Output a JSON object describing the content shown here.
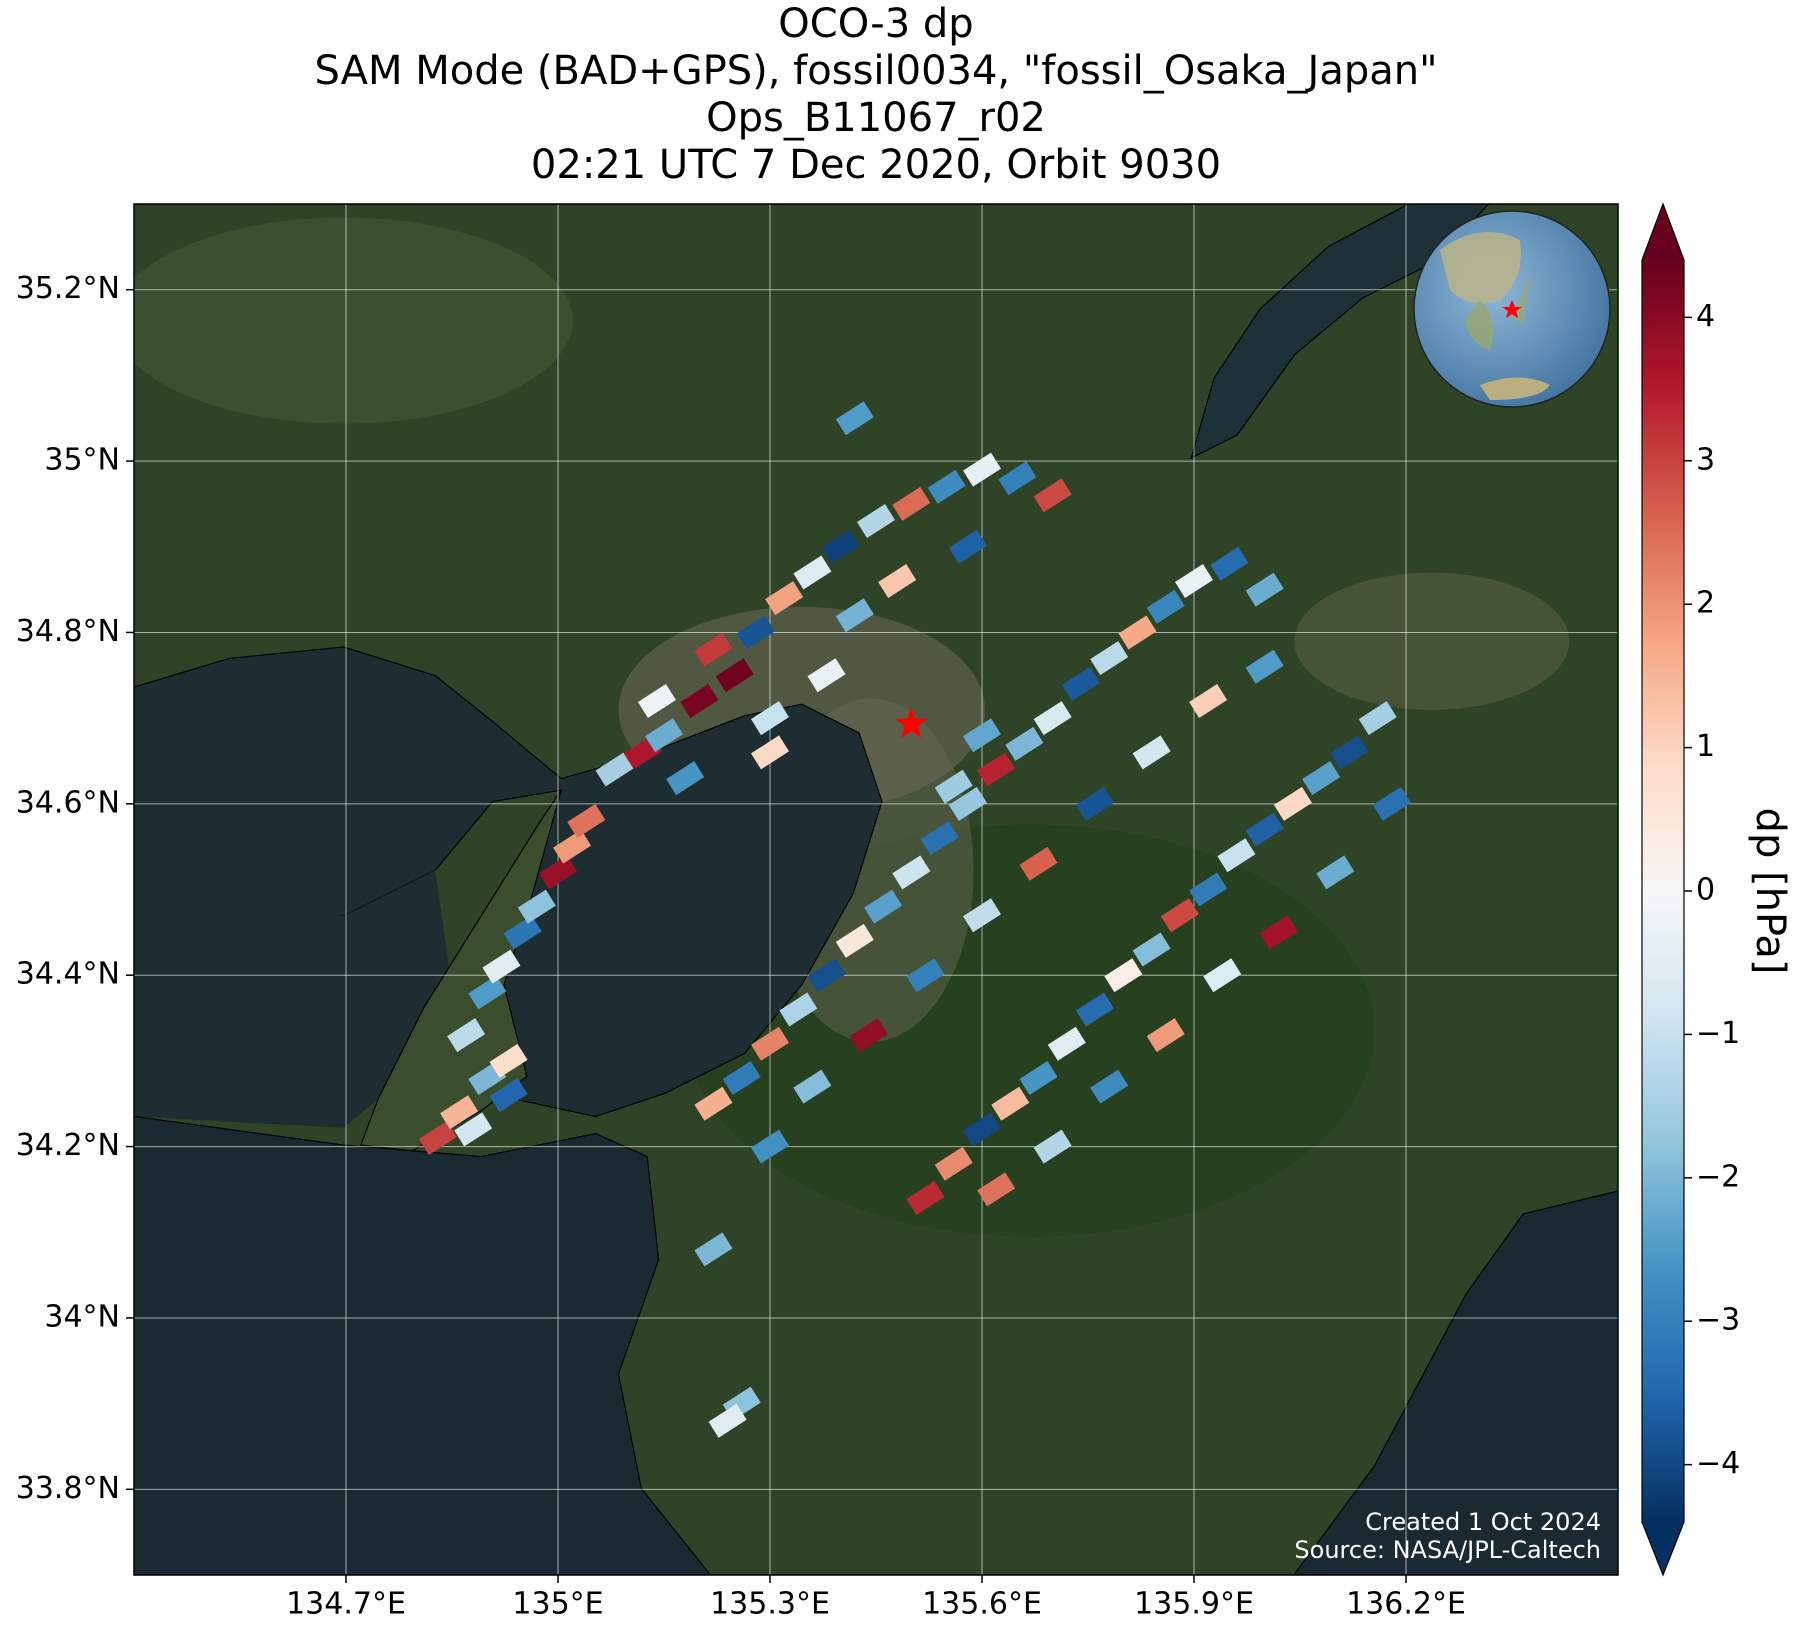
{
  "chart_data": {
    "type": "map",
    "title": [
      "OCO-3 dp",
      "SAM Mode (BAD+GPS), fossil0034, \"fossil_Osaka_Japan\"",
      "Ops_B11067_r02",
      "02:21 UTC 7 Dec 2020, Orbit 9030"
    ],
    "colorbar_label": "dp [hPa]",
    "annotations": [
      "Created 1 Oct 2024",
      "Source: NASA/JPL-Caltech"
    ],
    "xlim": [
      134.4,
      136.5
    ],
    "ylim": [
      33.7,
      35.3
    ],
    "xticks": [
      {
        "value": 134.7,
        "label": "134.7°E"
      },
      {
        "value": 135,
        "label": "135°E"
      },
      {
        "value": 135.3,
        "label": "135.3°E"
      },
      {
        "value": 135.6,
        "label": "135.6°E"
      },
      {
        "value": 135.9,
        "label": "135.9°E"
      },
      {
        "value": 136.2,
        "label": "136.2°E"
      }
    ],
    "yticks": [
      {
        "value": 33.8,
        "label": "33.8°N"
      },
      {
        "value": 34,
        "label": "34°N"
      },
      {
        "value": 34.2,
        "label": "34.2°N"
      },
      {
        "value": 34.4,
        "label": "34.4°N"
      },
      {
        "value": 34.6,
        "label": "34.6°N"
      },
      {
        "value": 34.8,
        "label": "34.8°N"
      },
      {
        "value": 35,
        "label": "35°N"
      },
      {
        "value": 35.2,
        "label": "35.2°N"
      }
    ],
    "grid": true,
    "clim": [
      -4.4,
      4.4
    ],
    "cticks": [
      {
        "value": -4,
        "label": "−4"
      },
      {
        "value": -3,
        "label": "−3"
      },
      {
        "value": -2,
        "label": "−2"
      },
      {
        "value": -1,
        "label": "−1"
      },
      0,
      1,
      2,
      3,
      4
    ],
    "colormap": [
      "#053061",
      "#2166ac",
      "#4393c3",
      "#92c5de",
      "#d1e5f0",
      "#f7f7f7",
      "#fddbc7",
      "#f4a582",
      "#d6604d",
      "#b2182b",
      "#67001f"
    ],
    "target": {
      "x": 135.5,
      "y": 34.693,
      "color": "#ff0000"
    },
    "x": [
      134.83,
      134.86,
      134.9,
      134.93,
      134.87,
      134.9,
      134.92,
      134.95,
      134.97,
      135.0,
      135.02,
      135.04,
      134.88,
      134.93,
      135.08,
      135.12,
      135.15,
      135.2,
      135.25,
      135.22,
      135.28,
      135.32,
      135.36,
      135.4,
      135.45,
      135.5,
      135.55,
      135.6,
      135.65,
      135.7,
      135.18,
      135.3,
      135.38,
      135.42,
      135.48,
      135.58,
      135.3,
      135.14,
      135.22,
      135.26,
      135.3,
      135.34,
      135.38,
      135.42,
      135.46,
      135.5,
      135.54,
      135.58,
      135.62,
      135.66,
      135.7,
      135.74,
      135.78,
      135.82,
      135.86,
      135.9,
      135.95,
      136.0,
      135.3,
      135.36,
      135.44,
      135.52,
      135.6,
      135.68,
      135.76,
      135.84,
      135.92,
      136.0,
      135.56,
      135.6,
      135.52,
      135.56,
      135.6,
      135.64,
      135.68,
      135.72,
      135.76,
      135.8,
      135.84,
      135.88,
      135.92,
      135.96,
      136.0,
      136.04,
      136.08,
      136.12,
      136.16,
      135.62,
      135.7,
      135.78,
      135.86,
      135.94,
      136.02,
      136.1,
      136.18,
      135.42,
      135.26,
      135.24,
      135.22
    ],
    "y": [
      34.21,
      34.24,
      34.28,
      34.3,
      34.33,
      34.38,
      34.41,
      34.45,
      34.48,
      34.52,
      34.55,
      34.58,
      34.22,
      34.26,
      34.64,
      34.66,
      34.68,
      34.72,
      34.75,
      34.78,
      34.8,
      34.84,
      34.87,
      34.9,
      34.93,
      34.95,
      34.97,
      34.99,
      34.98,
      34.96,
      34.63,
      34.7,
      34.75,
      34.82,
      34.86,
      34.9,
      34.66,
      34.72,
      34.25,
      34.28,
      34.32,
      34.36,
      34.4,
      34.44,
      34.48,
      34.52,
      34.56,
      34.6,
      34.64,
      34.67,
      34.7,
      34.74,
      34.77,
      34.8,
      34.83,
      34.86,
      34.88,
      34.85,
      34.2,
      34.27,
      34.33,
      34.4,
      34.47,
      34.53,
      34.6,
      34.66,
      34.72,
      34.76,
      34.62,
      34.68,
      34.14,
      34.18,
      34.22,
      34.25,
      34.28,
      34.32,
      34.36,
      34.4,
      34.43,
      34.47,
      34.5,
      34.54,
      34.57,
      34.6,
      34.63,
      34.66,
      34.7,
      34.15,
      34.2,
      34.27,
      34.33,
      34.4,
      34.45,
      34.52,
      34.6,
      35.05,
      33.9,
      33.88,
      34.08
    ],
    "values": [
      3.0,
      1.5,
      -2.0,
      0.8,
      -1.2,
      -2.5,
      -0.5,
      -3.2,
      -1.8,
      3.8,
      1.9,
      2.4,
      -0.8,
      -3.5,
      -1.5,
      3.6,
      -2.2,
      4.2,
      4.3,
      3.1,
      -3.8,
      1.8,
      -0.6,
      -4.1,
      -1.3,
      2.5,
      -2.8,
      -0.4,
      -3.0,
      2.9,
      -2.6,
      -1.0,
      -0.3,
      -2.1,
      1.2,
      -3.6,
      0.9,
      -0.2,
      1.6,
      -3.1,
      2.2,
      -1.4,
      -3.9,
      0.5,
      -2.4,
      -0.9,
      -3.3,
      -1.7,
      3.4,
      -2.0,
      -0.7,
      -3.7,
      -1.2,
      1.7,
      -2.9,
      -0.3,
      -3.4,
      -2.2,
      -2.7,
      -1.9,
      3.9,
      -3.0,
      -1.1,
      2.6,
      -3.8,
      -0.8,
      1.1,
      -2.5,
      -1.6,
      -2.3,
      3.3,
      2.1,
      -4.0,
      1.4,
      -2.6,
      -0.5,
      -3.4,
      0.3,
      -1.9,
      2.9,
      -3.1,
      -1.0,
      -3.6,
      0.9,
      -2.4,
      -3.9,
      -1.5,
      2.4,
      -1.3,
      -2.8,
      1.9,
      -0.6,
      3.7,
      -2.2,
      -3.3,
      -2.5,
      -1.8,
      -0.5,
      -2.0
    ]
  }
}
